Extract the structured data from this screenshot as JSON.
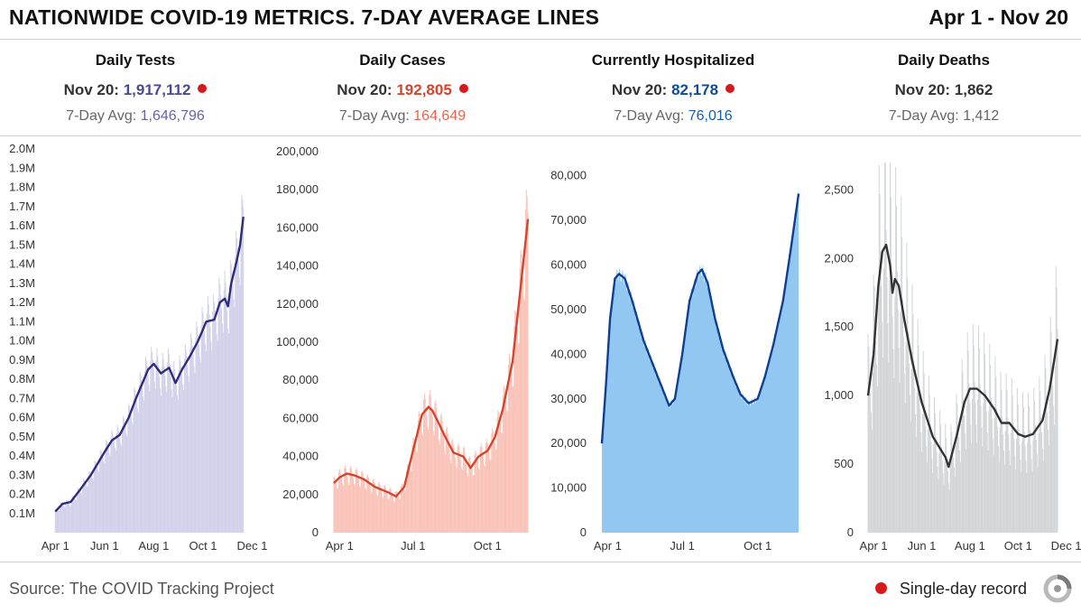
{
  "header": {
    "title": "NATIONWIDE COVID-19 METRICS. 7-DAY AVERAGE LINES",
    "date_range": "Apr 1 - Nov 20"
  },
  "footer": {
    "source": "Source: The COVID Tracking Project",
    "legend_label": "Single-day record"
  },
  "colors": {
    "record_dot": "#d7191c"
  },
  "chart_data": [
    {
      "type": "bar",
      "title": "Daily Tests",
      "latest_prefix": "Nov 20:",
      "latest_value": "1,917,112",
      "avg_prefix": "7-Day Avg:",
      "avg_value": "1,646,796",
      "single_day_record": true,
      "bar_color": "#d1d1ea",
      "line_color": "#2d2d7a",
      "value_color": "#4a4a8f",
      "avg_color": "#6464a8",
      "ylim": [
        0,
        2000000
      ],
      "yticks": [
        100000,
        200000,
        300000,
        400000,
        500000,
        600000,
        700000,
        800000,
        900000,
        1000000,
        1100000,
        1200000,
        1300000,
        1400000,
        1500000,
        1600000,
        1700000,
        1800000,
        1900000,
        2000000
      ],
      "ytick_labels": [
        "0.1M",
        "0.2M",
        "0.3M",
        "0.4M",
        "0.5M",
        "0.6M",
        "0.7M",
        "0.8M",
        "0.9M",
        "1.0M",
        "1.1M",
        "1.2M",
        "1.3M",
        "1.4M",
        "1.5M",
        "1.6M",
        "1.7M",
        "1.8M",
        "1.9M",
        "2.0M"
      ],
      "xticks": [
        {
          "date": "2020-04-01",
          "label": "Apr 1"
        },
        {
          "date": "2020-06-01",
          "label": "Jun 1"
        },
        {
          "date": "2020-08-01",
          "label": "Aug 1"
        },
        {
          "date": "2020-10-01",
          "label": "Oct 1"
        },
        {
          "date": "2020-12-01",
          "label": "Dec 1"
        }
      ],
      "x_range": [
        "2020-03-25",
        "2020-12-06"
      ],
      "daily_bars": "weekly-oscillating bars around the 7-day average",
      "avg_line": [
        [
          "2020-04-01",
          110000
        ],
        [
          "2020-04-10",
          150000
        ],
        [
          "2020-04-20",
          160000
        ],
        [
          "2020-05-01",
          220000
        ],
        [
          "2020-05-15",
          300000
        ],
        [
          "2020-06-01",
          420000
        ],
        [
          "2020-06-10",
          480000
        ],
        [
          "2020-06-20",
          510000
        ],
        [
          "2020-07-01",
          600000
        ],
        [
          "2020-07-10",
          700000
        ],
        [
          "2020-07-20",
          800000
        ],
        [
          "2020-07-25",
          850000
        ],
        [
          "2020-08-01",
          880000
        ],
        [
          "2020-08-10",
          830000
        ],
        [
          "2020-08-20",
          860000
        ],
        [
          "2020-08-28",
          780000
        ],
        [
          "2020-09-05",
          850000
        ],
        [
          "2020-09-15",
          920000
        ],
        [
          "2020-09-25",
          1000000
        ],
        [
          "2020-10-01",
          1060000
        ],
        [
          "2020-10-05",
          1100000
        ],
        [
          "2020-10-15",
          1110000
        ],
        [
          "2020-10-22",
          1200000
        ],
        [
          "2020-10-28",
          1220000
        ],
        [
          "2020-11-01",
          1180000
        ],
        [
          "2020-11-05",
          1300000
        ],
        [
          "2020-11-12",
          1420000
        ],
        [
          "2020-11-16",
          1500000
        ],
        [
          "2020-11-20",
          1646796
        ]
      ]
    },
    {
      "type": "bar",
      "title": "Daily Cases",
      "latest_prefix": "Nov 20:",
      "latest_value": "192,805",
      "avg_prefix": "7-Day Avg:",
      "avg_value": "164,649",
      "single_day_record": true,
      "bar_color": "#f9c3b8",
      "line_color": "#d7432b",
      "value_color": "#d7432b",
      "avg_color": "#e5664e",
      "ylim": [
        0,
        200000
      ],
      "yticks": [
        0,
        20000,
        40000,
        60000,
        80000,
        100000,
        120000,
        140000,
        160000,
        180000,
        200000
      ],
      "ytick_labels": [
        "0",
        "20,000",
        "40,000",
        "60,000",
        "80,000",
        "100,000",
        "120,000",
        "140,000",
        "160,000",
        "180,000",
        "200,000"
      ],
      "xticks": [
        {
          "date": "2020-04-01",
          "label": "Apr 1"
        },
        {
          "date": "2020-07-01",
          "label": "Jul 1"
        },
        {
          "date": "2020-10-01",
          "label": "Oct 1"
        }
      ],
      "x_range": [
        "2020-03-25",
        "2020-11-21"
      ],
      "daily_bars": "weekly-oscillating bars around the 7-day average",
      "avg_line": [
        [
          "2020-03-25",
          26000
        ],
        [
          "2020-04-01",
          29000
        ],
        [
          "2020-04-10",
          31000
        ],
        [
          "2020-04-20",
          30000
        ],
        [
          "2020-05-01",
          28000
        ],
        [
          "2020-05-15",
          24000
        ],
        [
          "2020-06-01",
          21000
        ],
        [
          "2020-06-10",
          19000
        ],
        [
          "2020-06-20",
          24000
        ],
        [
          "2020-06-28",
          38000
        ],
        [
          "2020-07-05",
          50000
        ],
        [
          "2020-07-12",
          62000
        ],
        [
          "2020-07-20",
          66000
        ],
        [
          "2020-07-25",
          64000
        ],
        [
          "2020-08-01",
          58000
        ],
        [
          "2020-08-10",
          50000
        ],
        [
          "2020-08-20",
          42000
        ],
        [
          "2020-09-01",
          40000
        ],
        [
          "2020-09-10",
          34000
        ],
        [
          "2020-09-20",
          40000
        ],
        [
          "2020-10-01",
          43000
        ],
        [
          "2020-10-10",
          50000
        ],
        [
          "2020-10-20",
          65000
        ],
        [
          "2020-11-01",
          90000
        ],
        [
          "2020-11-10",
          125000
        ],
        [
          "2020-11-20",
          164649
        ]
      ]
    },
    {
      "type": "area",
      "title": "Currently Hospitalized",
      "latest_prefix": "Nov 20:",
      "latest_value": "82,178",
      "avg_prefix": "7-Day Avg:",
      "avg_value": "76,016",
      "single_day_record": true,
      "bar_color": "#92c7f2",
      "line_color": "#0f3f8f",
      "value_color": "#0f4c96",
      "avg_color": "#1a5ca8",
      "ylim": [
        0,
        85000
      ],
      "yticks": [
        0,
        10000,
        20000,
        30000,
        40000,
        50000,
        60000,
        70000,
        80000
      ],
      "ytick_labels": [
        "0",
        "10,000",
        "20,000",
        "30,000",
        "40,000",
        "50,000",
        "60,000",
        "70,000",
        "80,000"
      ],
      "xticks": [
        {
          "date": "2020-04-01",
          "label": "Apr 1"
        },
        {
          "date": "2020-07-01",
          "label": "Jul 1"
        },
        {
          "date": "2020-10-01",
          "label": "Oct 1"
        }
      ],
      "x_range": [
        "2020-03-25",
        "2020-11-21"
      ],
      "avg_line": [
        [
          "2020-03-25",
          20000
        ],
        [
          "2020-03-30",
          33000
        ],
        [
          "2020-04-04",
          48000
        ],
        [
          "2020-04-10",
          57000
        ],
        [
          "2020-04-15",
          58000
        ],
        [
          "2020-04-22",
          57000
        ],
        [
          "2020-05-01",
          52000
        ],
        [
          "2020-05-15",
          43000
        ],
        [
          "2020-06-01",
          35000
        ],
        [
          "2020-06-15",
          28500
        ],
        [
          "2020-06-22",
          30000
        ],
        [
          "2020-07-01",
          40000
        ],
        [
          "2020-07-10",
          52000
        ],
        [
          "2020-07-20",
          58000
        ],
        [
          "2020-07-25",
          59000
        ],
        [
          "2020-08-01",
          56000
        ],
        [
          "2020-08-10",
          48000
        ],
        [
          "2020-08-20",
          41000
        ],
        [
          "2020-09-01",
          35000
        ],
        [
          "2020-09-10",
          31000
        ],
        [
          "2020-09-20",
          29000
        ],
        [
          "2020-10-01",
          30000
        ],
        [
          "2020-10-10",
          35000
        ],
        [
          "2020-10-20",
          42000
        ],
        [
          "2020-11-01",
          52000
        ],
        [
          "2020-11-10",
          63000
        ],
        [
          "2020-11-20",
          76016
        ]
      ]
    },
    {
      "type": "bar",
      "title": "Daily Deaths",
      "latest_prefix": "Nov 20:",
      "latest_value": "1,862",
      "avg_prefix": "7-Day Avg:",
      "avg_value": "1,412",
      "single_day_record": false,
      "bar_color": "#d3d6d8",
      "line_color": "#333333",
      "value_color": "#333333",
      "avg_color": "#666666",
      "ylim": [
        0,
        2700
      ],
      "yticks": [
        0,
        500,
        1000,
        1500,
        2000,
        2500
      ],
      "ytick_labels": [
        "0",
        "500",
        "1,000",
        "1,500",
        "2,000",
        "2,500"
      ],
      "xticks": [
        {
          "date": "2020-04-01",
          "label": "Apr 1"
        },
        {
          "date": "2020-06-01",
          "label": "Jun 1"
        },
        {
          "date": "2020-08-01",
          "label": "Aug 1"
        },
        {
          "date": "2020-10-01",
          "label": "Oct 1"
        },
        {
          "date": "2020-12-01",
          "label": "Dec 1"
        }
      ],
      "x_range": [
        "2020-03-25",
        "2020-12-06"
      ],
      "daily_bars": "weekly-oscillating bars around the 7-day average",
      "avg_line": [
        [
          "2020-03-25",
          1000
        ],
        [
          "2020-04-01",
          1300
        ],
        [
          "2020-04-07",
          1800
        ],
        [
          "2020-04-12",
          2050
        ],
        [
          "2020-04-17",
          2100
        ],
        [
          "2020-04-22",
          1950
        ],
        [
          "2020-04-25",
          1750
        ],
        [
          "2020-04-28",
          1850
        ],
        [
          "2020-05-03",
          1800
        ],
        [
          "2020-05-10",
          1550
        ],
        [
          "2020-05-20",
          1250
        ],
        [
          "2020-06-01",
          950
        ],
        [
          "2020-06-15",
          700
        ],
        [
          "2020-07-01",
          550
        ],
        [
          "2020-07-05",
          480
        ],
        [
          "2020-07-15",
          700
        ],
        [
          "2020-07-25",
          950
        ],
        [
          "2020-08-01",
          1050
        ],
        [
          "2020-08-10",
          1050
        ],
        [
          "2020-08-20",
          1000
        ],
        [
          "2020-09-01",
          900
        ],
        [
          "2020-09-10",
          800
        ],
        [
          "2020-09-20",
          800
        ],
        [
          "2020-10-01",
          720
        ],
        [
          "2020-10-10",
          700
        ],
        [
          "2020-10-20",
          720
        ],
        [
          "2020-11-01",
          820
        ],
        [
          "2020-11-10",
          1050
        ],
        [
          "2020-11-20",
          1412
        ]
      ]
    }
  ]
}
